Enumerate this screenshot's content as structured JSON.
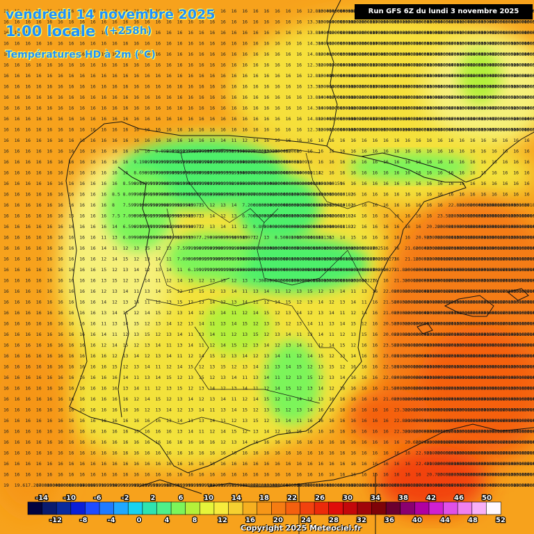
{
  "header": {
    "date": "vendredi 14 novembre 2025",
    "hour": "1:00 locale",
    "lead": "(+258h)",
    "parameter": "Températures HD à 2m (°C)",
    "run": "Run GFS 6Z du lundi 3 novembre 2025"
  },
  "footer": {
    "copyright": "Copyright 2025 Meteociel.fr"
  },
  "legend": {
    "top_labels": [
      "-14",
      "-10",
      "-6",
      "-2",
      "2",
      "6",
      "10",
      "14",
      "18",
      "22",
      "26",
      "30",
      "34",
      "38",
      "42",
      "46",
      "50"
    ],
    "bottom_labels": [
      "-12",
      "-8",
      "-4",
      "0",
      "4",
      "8",
      "12",
      "16",
      "20",
      "24",
      "28",
      "32",
      "36",
      "40",
      "44",
      "48",
      "52"
    ],
    "colors": [
      "#02033f",
      "#0a1b6e",
      "#0a2a9c",
      "#0a1fd8",
      "#1e4cff",
      "#1f7bff",
      "#1fa8ff",
      "#19d3f0",
      "#2ee3b0",
      "#4ef08a",
      "#7cf55a",
      "#b4f03a",
      "#e6f53a",
      "#f7ec3c",
      "#f6d030",
      "#f6b020",
      "#f69618",
      "#f57c12",
      "#f5600f",
      "#f2420e",
      "#ec2a0a",
      "#e00c0a",
      "#c4080a",
      "#a0060a",
      "#7e0408",
      "#6a0030",
      "#8a0070",
      "#b000a0",
      "#d020d0",
      "#e050e8",
      "#f080f0",
      "#f8b0f8",
      "#fff8ff"
    ]
  },
  "map": {
    "region": "Péninsule Ibérique",
    "grid_values_sample": [
      "16",
      "15",
      "14",
      "13",
      "12",
      "11",
      "10",
      "9",
      "8",
      "7",
      "6",
      "5",
      "17",
      "18",
      "19",
      "20",
      "21",
      "22",
      "23",
      "24"
    ],
    "colors": {
      "warm_orange": "#f7a21c",
      "yellow": "#f3e23a",
      "light_yellow": "#f6f07a",
      "green": "#4ef06a",
      "yellow_green": "#b4f03a",
      "red_orange": "#f2420e"
    }
  }
}
